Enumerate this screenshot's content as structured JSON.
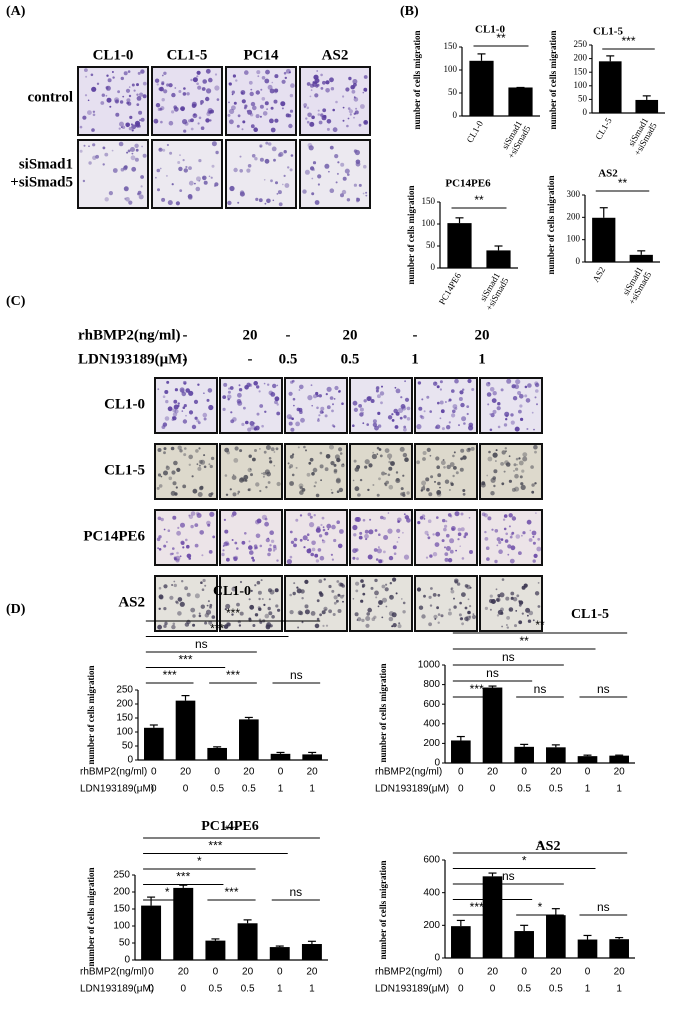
{
  "panel_labels": [
    "(A)",
    "(B)",
    "(C)",
    "(D)"
  ],
  "panel_a": {
    "columns": [
      "CL1-0",
      "CL1-5",
      "PC14",
      "AS2"
    ],
    "rows": [
      [
        "control"
      ],
      [
        "siSmad1",
        "+siSmad5"
      ]
    ]
  },
  "panel_c": {
    "treatments": [
      {
        "label": "rhBMP2(ng/ml)",
        "values": [
          "-",
          "20",
          "-",
          "20",
          "-",
          "20"
        ]
      },
      {
        "label": "LDN193189(μM)",
        "values": [
          "-",
          "-",
          "0.5",
          "0.5",
          "1",
          "1"
        ]
      }
    ],
    "rows": [
      "CL1-0",
      "CL1-5",
      "PC14PE6",
      "AS2"
    ]
  },
  "chart_data": [
    {
      "type": "bar",
      "title": "CL1-0",
      "ylabel": "number of cells migration",
      "categories": [
        "CL1-0",
        "siSmad1\n+siSmad5"
      ],
      "values": [
        120,
        62
      ],
      "errors": [
        15,
        0
      ],
      "ylim": [
        0,
        150
      ],
      "yticks": [
        0,
        50,
        100,
        150
      ],
      "color": "#000000",
      "comparisons": [
        {
          "groups": [
            0,
            1
          ],
          "label": "**"
        }
      ]
    },
    {
      "type": "bar",
      "title": "CL1-5",
      "ylabel": "number of cells migration",
      "categories": [
        "CL1-5",
        "siSmad1\n+siSmad5"
      ],
      "values": [
        190,
        48
      ],
      "errors": [
        20,
        15
      ],
      "ylim": [
        0,
        250
      ],
      "yticks": [
        0,
        50,
        100,
        150,
        200,
        250
      ],
      "color": "#000000",
      "comparisons": [
        {
          "groups": [
            0,
            1
          ],
          "label": "***"
        }
      ]
    },
    {
      "type": "bar",
      "title": "PC14PE6",
      "ylabel": "number of cells migration",
      "categories": [
        "PC14PE6",
        "siSmad1\n+siSmad5"
      ],
      "values": [
        102,
        40
      ],
      "errors": [
        12,
        10
      ],
      "ylim": [
        0,
        150
      ],
      "yticks": [
        0,
        50,
        100,
        150
      ],
      "color": "#000000",
      "comparisons": [
        {
          "groups": [
            0,
            1
          ],
          "label": "**"
        }
      ]
    },
    {
      "type": "bar",
      "title": "AS2",
      "ylabel": "number of cells migration",
      "categories": [
        "AS2",
        "siSmad1\n+siSmad5"
      ],
      "values": [
        198,
        32
      ],
      "errors": [
        45,
        18
      ],
      "ylim": [
        0,
        300
      ],
      "yticks": [
        0,
        100,
        200,
        300
      ],
      "color": "#000000",
      "comparisons": [
        {
          "groups": [
            0,
            1
          ],
          "label": "**"
        }
      ]
    },
    {
      "type": "bar",
      "title": "CL1-0",
      "ylabel": "number of cells migration",
      "categories": [
        null,
        null,
        null,
        null,
        null,
        null
      ],
      "x_rows": [
        {
          "label": "rhBMP2(ng/ml)",
          "values": [
            "0",
            "20",
            "0",
            "20",
            "0",
            "20"
          ]
        },
        {
          "label": "LDN193189(μM)",
          "values": [
            "0",
            "0",
            "0.5",
            "0.5",
            "1",
            "1"
          ]
        }
      ],
      "values": [
        115,
        212,
        43,
        145,
        22,
        20
      ],
      "errors": [
        10,
        18,
        4,
        7,
        5,
        7
      ],
      "ylim": [
        0,
        250
      ],
      "yticks": [
        0,
        50,
        100,
        150,
        200,
        250
      ],
      "color": "#000000",
      "comparisons": [
        {
          "groups": [
            0,
            1
          ],
          "label": "***"
        },
        {
          "groups": [
            2,
            3
          ],
          "label": "***"
        },
        {
          "groups": [
            4,
            5
          ],
          "label": "ns"
        },
        {
          "groups": [
            0,
            2
          ],
          "label": "***"
        },
        {
          "groups": [
            0,
            3
          ],
          "label": "ns"
        },
        {
          "groups": [
            0,
            4
          ],
          "label": "***"
        },
        {
          "groups": [
            0,
            5
          ],
          "label": "***"
        }
      ]
    },
    {
      "type": "bar",
      "title": "CL1-5",
      "ylabel": "number of cells migration",
      "categories": [
        null,
        null,
        null,
        null,
        null,
        null
      ],
      "x_rows": [
        {
          "label": "rhBMP2(ng/ml)",
          "values": [
            "0",
            "20",
            "0",
            "20",
            "0",
            "20"
          ]
        },
        {
          "label": "LDN193189(μM)",
          "values": [
            "0",
            "0",
            "0.5",
            "0.5",
            "1",
            "1"
          ]
        }
      ],
      "values": [
        230,
        770,
        165,
        160,
        70,
        75
      ],
      "errors": [
        40,
        15,
        25,
        25,
        10,
        5
      ],
      "ylim": [
        0,
        1000
      ],
      "yticks": [
        0,
        200,
        400,
        600,
        800,
        1000
      ],
      "color": "#000000",
      "comparisons": [
        {
          "groups": [
            0,
            1
          ],
          "label": "***"
        },
        {
          "groups": [
            2,
            3
          ],
          "label": "ns"
        },
        {
          "groups": [
            4,
            5
          ],
          "label": "ns"
        },
        {
          "groups": [
            0,
            2
          ],
          "label": "ns"
        },
        {
          "groups": [
            0,
            3
          ],
          "label": "ns"
        },
        {
          "groups": [
            0,
            4
          ],
          "label": "**"
        },
        {
          "groups": [
            0,
            5
          ],
          "label": "**"
        }
      ]
    },
    {
      "type": "bar",
      "title": "PC14PE6",
      "ylabel": "number of cells migration",
      "categories": [
        null,
        null,
        null,
        null,
        null,
        null
      ],
      "x_rows": [
        {
          "label": "rhBMP2(ng/ml)",
          "values": [
            "0",
            "20",
            "0",
            "20",
            "0",
            "20"
          ]
        },
        {
          "label": "LDN193189(μM)",
          "values": [
            "0",
            "0",
            "0.5",
            "0.5",
            "1",
            "1"
          ]
        }
      ],
      "values": [
        160,
        212,
        57,
        108,
        38,
        47
      ],
      "errors": [
        25,
        8,
        5,
        10,
        3,
        8
      ],
      "ylim": [
        0,
        250
      ],
      "yticks": [
        0,
        50,
        100,
        150,
        200,
        250
      ],
      "color": "#000000",
      "comparisons": [
        {
          "groups": [
            0,
            1
          ],
          "label": "*"
        },
        {
          "groups": [
            2,
            3
          ],
          "label": "***"
        },
        {
          "groups": [
            4,
            5
          ],
          "label": "ns"
        },
        {
          "groups": [
            0,
            2
          ],
          "label": "***"
        },
        {
          "groups": [
            0,
            3
          ],
          "label": "*"
        },
        {
          "groups": [
            0,
            4
          ],
          "label": "***"
        },
        {
          "groups": [
            0,
            5
          ],
          "label": "***"
        }
      ]
    },
    {
      "type": "bar",
      "title": "AS2",
      "ylabel": "number of cells migration",
      "categories": [
        null,
        null,
        null,
        null,
        null,
        null
      ],
      "x_rows": [
        {
          "label": "rhBMP2(ng/ml)",
          "values": [
            "0",
            "20",
            "0",
            "20",
            "0",
            "20"
          ]
        },
        {
          "label": "LDN193189(μM)",
          "values": [
            "0",
            "0",
            "0.5",
            "0.5",
            "1",
            "1"
          ]
        }
      ],
      "values": [
        195,
        500,
        165,
        262,
        113,
        115
      ],
      "errors": [
        35,
        20,
        35,
        40,
        25,
        10
      ],
      "ylim": [
        0,
        600
      ],
      "yticks": [
        0,
        200,
        400,
        600
      ],
      "color": "#000000",
      "comparisons": [
        {
          "groups": [
            0,
            1
          ],
          "label": "***"
        },
        {
          "groups": [
            2,
            3
          ],
          "label": "*"
        },
        {
          "groups": [
            4,
            5
          ],
          "label": "ns"
        },
        {
          "groups": [
            0,
            2
          ],
          "label": "ns"
        },
        {
          "groups": [
            0,
            3
          ],
          "label": "ns"
        },
        {
          "groups": [
            0,
            4
          ],
          "label": "*"
        },
        {
          "groups": [
            0,
            5
          ],
          "label": "*"
        }
      ]
    }
  ]
}
